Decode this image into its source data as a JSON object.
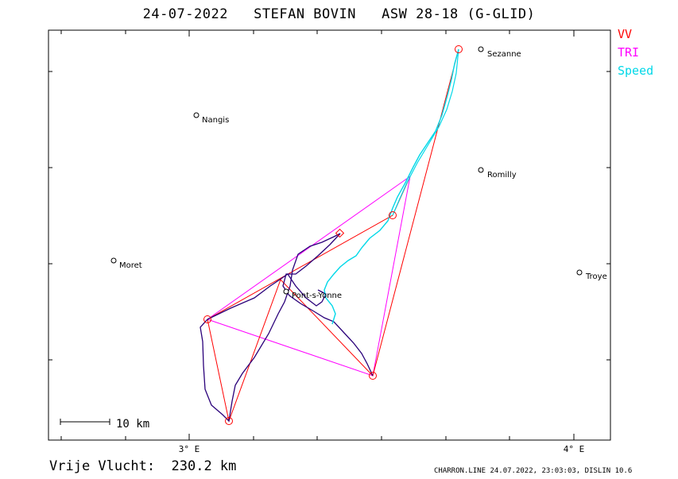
{
  "header": {
    "title": "24-07-2022   STEFAN BOVIN   ASW 28-18 (G-GLID)"
  },
  "legend": [
    {
      "label": "VV",
      "color": "#ff0000"
    },
    {
      "label": "TRI",
      "color": "#ff00ff"
    },
    {
      "label": "Speed",
      "color": "#00d8e8"
    }
  ],
  "axis": {
    "x_ticks": [
      "3° E",
      "4° E"
    ]
  },
  "scale_bar": {
    "label": "10 km"
  },
  "places": [
    {
      "name": "Sezanne"
    },
    {
      "name": "Nangis"
    },
    {
      "name": "Romilly"
    },
    {
      "name": "Moret"
    },
    {
      "name": "Pont-s-Yonne"
    },
    {
      "name": "Troye"
    }
  ],
  "footer": {
    "distance": "Vrije Vlucht:  230.2 km",
    "credit": "CHARRON.LINE 24.07.2022, 23:03:03, DISLIN 10.6"
  },
  "colors": {
    "track": "#2a007a",
    "speed": "#00d8e8",
    "vv": "#ff0000",
    "tri": "#ff00ff"
  }
}
